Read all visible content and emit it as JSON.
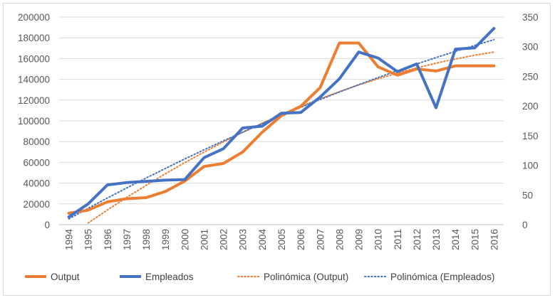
{
  "chart_data": {
    "type": "line",
    "title": "",
    "xlabel": "",
    "ylabel": "",
    "categories": [
      "1994",
      "1995",
      "1996",
      "1997",
      "1998",
      "1999",
      "2000",
      "2001",
      "2002",
      "2003",
      "2004",
      "2005",
      "2006",
      "2007",
      "2008",
      "2009",
      "2010",
      "2011",
      "2012",
      "2013",
      "2014",
      "2015",
      "2016"
    ],
    "y_left": {
      "min": 0,
      "max": 200000,
      "step": 20000,
      "ticks": [
        "0",
        "20000",
        "40000",
        "60000",
        "80000",
        "100000",
        "120000",
        "140000",
        "160000",
        "180000",
        "200000"
      ]
    },
    "y_right": {
      "min": 0,
      "max": 350,
      "step": 50,
      "ticks": [
        "0",
        "50",
        "100",
        "150",
        "200",
        "250",
        "300",
        "350"
      ]
    },
    "grid": true,
    "legend_position": "bottom",
    "series": [
      {
        "name": "Output",
        "axis": "left",
        "style": "solid",
        "color": "#ED7D31",
        "values": [
          11000,
          14000,
          22000,
          25000,
          26000,
          32000,
          42000,
          56000,
          59000,
          70000,
          89000,
          105000,
          114000,
          132000,
          175000,
          175000,
          152000,
          144000,
          150000,
          148000,
          153000,
          153000,
          153000
        ]
      },
      {
        "name": "Empleados",
        "axis": "right",
        "style": "solid",
        "color": "#4472C4",
        "values": [
          13,
          35,
          67,
          71,
          73,
          75,
          76,
          113,
          128,
          163,
          166,
          188,
          189,
          215,
          246,
          291,
          281,
          258,
          271,
          197,
          296,
          298,
          331
        ]
      },
      {
        "name": "Polinómica (Output)",
        "axis": "left",
        "style": "dotted",
        "color": "#ED7D31",
        "trend_of": "Output"
      },
      {
        "name": "Polinómica (Empleados)",
        "axis": "right",
        "style": "dotted",
        "color": "#4472C4",
        "trend_of": "Empleados"
      }
    ]
  }
}
